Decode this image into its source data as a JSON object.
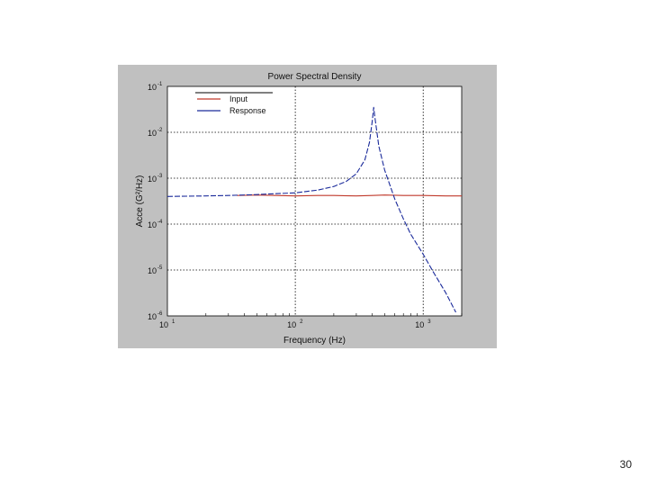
{
  "slide": {
    "number": "30"
  },
  "colors": {
    "figure_background": "#c0c0c0",
    "axes_background": "#ffffff",
    "input_line": "#c0392b",
    "response_line": "#1a2a9a",
    "grid": "#000000"
  },
  "chart_data": {
    "type": "line",
    "title": "Power Spectral Density",
    "xlabel": "Frequency (Hz)",
    "ylabel": "Acce (G²/Hz)",
    "xscale": "log",
    "yscale": "log",
    "xlim": [
      10,
      2000
    ],
    "ylim": [
      1e-06,
      0.1
    ],
    "grid": "dotted, major decades",
    "legend_position": "top-left",
    "xticks": [
      {
        "base": "10",
        "exp": "1"
      },
      {
        "base": "10",
        "exp": "2"
      },
      {
        "base": "10",
        "exp": "3"
      }
    ],
    "yticks": [
      {
        "base": "10",
        "exp": "-1"
      },
      {
        "base": "10",
        "exp": "-2"
      },
      {
        "base": "10",
        "exp": "-3"
      },
      {
        "base": "10",
        "exp": "-4"
      },
      {
        "base": "10",
        "exp": "-5"
      },
      {
        "base": "10",
        "exp": "-6"
      }
    ],
    "series": [
      {
        "name": "Input",
        "color": "#c0392b",
        "x": [
          35,
          50,
          70,
          100,
          150,
          200,
          300,
          400,
          500,
          700,
          1000,
          1500,
          2000
        ],
        "y": [
          0.00042,
          0.00043,
          0.00042,
          0.00041,
          0.00042,
          0.00042,
          0.00041,
          0.00042,
          0.00043,
          0.00042,
          0.00042,
          0.00041,
          0.00041
        ]
      },
      {
        "name": "Response",
        "color": "#1a2a9a",
        "x": [
          10,
          20,
          30,
          50,
          70,
          100,
          150,
          200,
          250,
          300,
          350,
          380,
          400,
          410,
          420,
          450,
          500,
          600,
          700,
          800,
          1000,
          1200,
          1500,
          1800
        ],
        "y": [
          0.0004,
          0.00041,
          0.00042,
          0.00044,
          0.00046,
          0.00048,
          0.00055,
          0.00066,
          0.00085,
          0.00125,
          0.0025,
          0.006,
          0.018,
          0.035,
          0.02,
          0.005,
          0.0015,
          0.00035,
          0.00013,
          6e-05,
          2.2e-05,
          9e-06,
          3.2e-06,
          1.2e-06
        ]
      }
    ]
  }
}
